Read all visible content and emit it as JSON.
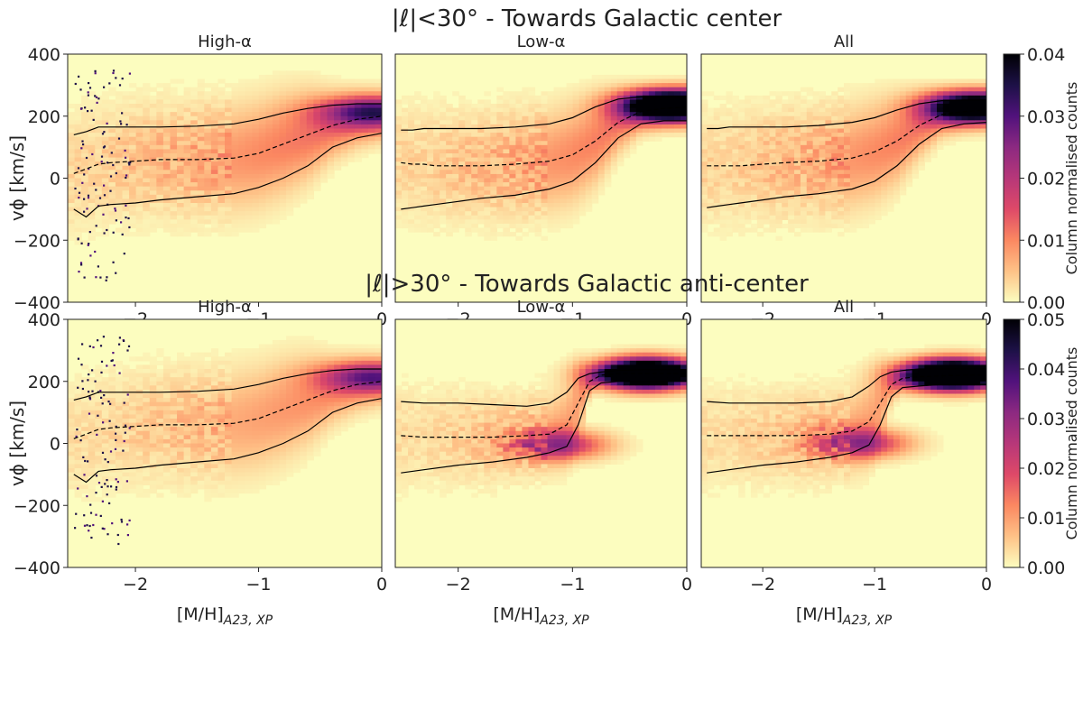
{
  "colors": {
    "frame": "#222222",
    "cmap": [
      "#fcfdbf",
      "#fec287",
      "#fb8861",
      "#de4968",
      "#b73779",
      "#8c2981",
      "#51127c",
      "#1d1147",
      "#000004"
    ]
  },
  "chart_data": [
    {
      "type": "heatmap",
      "row_title": "|ℓ|<30° - Towards Galactic center",
      "colorbar": {
        "label": "Column normalised counts",
        "range": [
          0,
          0.04
        ],
        "ticks": [
          "0.00",
          "0.01",
          "0.02",
          "0.03",
          "0.04"
        ]
      },
      "ylabel": "vϕ [km/s]",
      "ylim": [
        -400,
        400
      ],
      "yticks": [
        "400",
        "200",
        "0",
        "−200",
        "−400"
      ],
      "xlim": [
        -2.55,
        0
      ],
      "xticks": [
        "−2",
        "−1",
        "0"
      ],
      "xlabel": "[M/H]",
      "xlabel_sub": "A23, XP",
      "panels": [
        {
          "title": "High-α",
          "scatter": true,
          "x": [
            -2.5,
            -2.4,
            -2.3,
            -2.2,
            -2.0,
            -1.8,
            -1.5,
            -1.2,
            -1.0,
            -0.8,
            -0.6,
            -0.4,
            -0.2,
            0.0
          ],
          "median": [
            15,
            30,
            45,
            50,
            55,
            60,
            60,
            65,
            80,
            110,
            140,
            170,
            190,
            200
          ],
          "upper": [
            140,
            150,
            165,
            165,
            165,
            165,
            168,
            175,
            190,
            210,
            225,
            235,
            240,
            240
          ],
          "lower": [
            -100,
            -125,
            -90,
            -85,
            -80,
            -70,
            -60,
            -50,
            -30,
            0,
            40,
            100,
            130,
            145
          ],
          "hot": [
            {
              "x": -0.1,
              "y": 215,
              "h": 0.022
            }
          ]
        },
        {
          "title": "Low-α",
          "scatter": false,
          "x": [
            -2.5,
            -2.4,
            -2.3,
            -2.2,
            -2.0,
            -1.8,
            -1.5,
            -1.2,
            -1.0,
            -0.8,
            -0.6,
            -0.4,
            -0.2,
            0.0
          ],
          "median": [
            50,
            45,
            45,
            40,
            40,
            40,
            45,
            55,
            75,
            120,
            180,
            215,
            225,
            230
          ],
          "upper": [
            155,
            155,
            160,
            160,
            160,
            160,
            165,
            175,
            195,
            230,
            255,
            262,
            262,
            262
          ],
          "lower": [
            -100,
            -95,
            -90,
            -85,
            -75,
            -65,
            -55,
            -35,
            -10,
            50,
            130,
            175,
            185,
            185
          ],
          "hot": [
            {
              "x": -0.15,
              "y": 235,
              "h": 0.06
            }
          ]
        },
        {
          "title": "All",
          "scatter": false,
          "x": [
            -2.5,
            -2.4,
            -2.3,
            -2.2,
            -2.0,
            -1.8,
            -1.5,
            -1.2,
            -1.0,
            -0.8,
            -0.6,
            -0.4,
            -0.2,
            0.0
          ],
          "median": [
            40,
            40,
            40,
            40,
            45,
            50,
            55,
            65,
            85,
            120,
            170,
            205,
            215,
            220
          ],
          "upper": [
            160,
            160,
            165,
            165,
            165,
            165,
            170,
            180,
            195,
            220,
            240,
            250,
            252,
            252
          ],
          "lower": [
            -95,
            -90,
            -85,
            -80,
            -70,
            -60,
            -50,
            -35,
            -10,
            40,
            110,
            160,
            175,
            180
          ],
          "hot": [
            {
              "x": -0.12,
              "y": 230,
              "h": 0.05
            }
          ]
        }
      ]
    },
    {
      "type": "heatmap",
      "row_title": "|ℓ|>30° - Towards Galactic anti-center",
      "colorbar": {
        "label": "Column normalised counts",
        "range": [
          0,
          0.05
        ],
        "ticks": [
          "0.00",
          "0.01",
          "0.02",
          "0.03",
          "0.04",
          "0.05"
        ]
      },
      "ylabel": "vϕ [km/s]",
      "ylim": [
        -400,
        400
      ],
      "yticks": [
        "400",
        "200",
        "0",
        "−200",
        "−400"
      ],
      "xlim": [
        -2.55,
        0
      ],
      "xticks": [
        "−2",
        "−1",
        "0"
      ],
      "xlabel": "[M/H]",
      "xlabel_sub": "A23, XP",
      "panels": [
        {
          "title": "High-α",
          "scatter": true,
          "x": [
            -2.5,
            -2.4,
            -2.3,
            -2.2,
            -2.0,
            -1.8,
            -1.5,
            -1.2,
            -1.0,
            -0.8,
            -0.6,
            -0.4,
            -0.2,
            0.0
          ],
          "median": [
            15,
            30,
            45,
            50,
            55,
            60,
            60,
            65,
            80,
            110,
            140,
            170,
            190,
            200
          ],
          "upper": [
            140,
            150,
            165,
            165,
            165,
            165,
            168,
            175,
            190,
            210,
            225,
            235,
            240,
            240
          ],
          "lower": [
            -100,
            -125,
            -90,
            -85,
            -80,
            -70,
            -60,
            -50,
            -30,
            0,
            40,
            100,
            130,
            145
          ],
          "hot": [
            {
              "x": -0.1,
              "y": 215,
              "h": 0.025
            }
          ]
        },
        {
          "title": "Low-α",
          "scatter": false,
          "x": [
            -2.5,
            -2.3,
            -2.0,
            -1.7,
            -1.4,
            -1.2,
            -1.05,
            -0.95,
            -0.85,
            -0.75,
            -0.6,
            -0.4,
            -0.2,
            0.0
          ],
          "median": [
            25,
            20,
            20,
            20,
            25,
            30,
            60,
            130,
            200,
            220,
            225,
            225,
            225,
            225
          ],
          "upper": [
            135,
            130,
            130,
            125,
            120,
            130,
            165,
            210,
            225,
            230,
            235,
            238,
            238,
            238
          ],
          "lower": [
            -95,
            -85,
            -70,
            -60,
            -45,
            -30,
            -10,
            60,
            170,
            195,
            200,
            200,
            200,
            200
          ],
          "hot": [
            {
              "x": -0.35,
              "y": 225,
              "h": 0.09
            },
            {
              "x": -1.1,
              "y": -5,
              "h": 0.025
            }
          ]
        },
        {
          "title": "All",
          "scatter": false,
          "x": [
            -2.5,
            -2.3,
            -2.0,
            -1.7,
            -1.4,
            -1.2,
            -1.05,
            -0.95,
            -0.85,
            -0.75,
            -0.6,
            -0.4,
            -0.2,
            0.0
          ],
          "median": [
            25,
            25,
            25,
            25,
            30,
            40,
            70,
            130,
            190,
            210,
            215,
            218,
            220,
            220
          ],
          "upper": [
            135,
            130,
            130,
            130,
            135,
            150,
            185,
            215,
            230,
            235,
            240,
            240,
            240,
            240
          ],
          "lower": [
            -95,
            -85,
            -70,
            -60,
            -45,
            -30,
            -5,
            60,
            150,
            180,
            185,
            190,
            190,
            190
          ],
          "hot": [
            {
              "x": -0.3,
              "y": 222,
              "h": 0.09
            },
            {
              "x": -1.1,
              "y": 0,
              "h": 0.025
            }
          ]
        }
      ]
    }
  ]
}
